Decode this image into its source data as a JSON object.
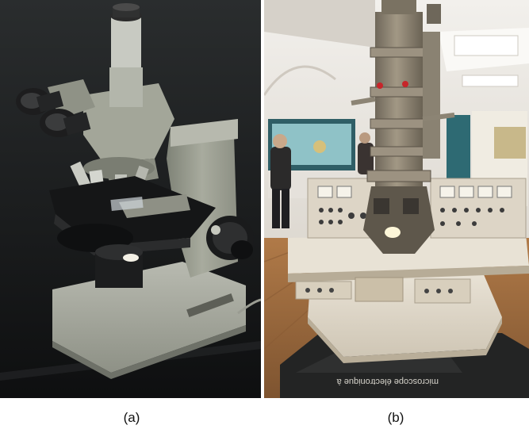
{
  "figure": {
    "panel_a": {
      "label": "(a)",
      "subject": "light-microscope-photo"
    },
    "panel_b": {
      "label": "(b)",
      "subject": "electron-microscope-photo",
      "floor_sign_text": "microscope électronique à"
    }
  },
  "colors": {
    "lab_bench": "#1c1e1f",
    "microscope_body": "#9fa295",
    "stage": "#151617",
    "gallery_wall": "#e9e6e1",
    "wood_floor": "#9a6a3d",
    "console": "#e4dccd",
    "column": "#8b8272"
  }
}
